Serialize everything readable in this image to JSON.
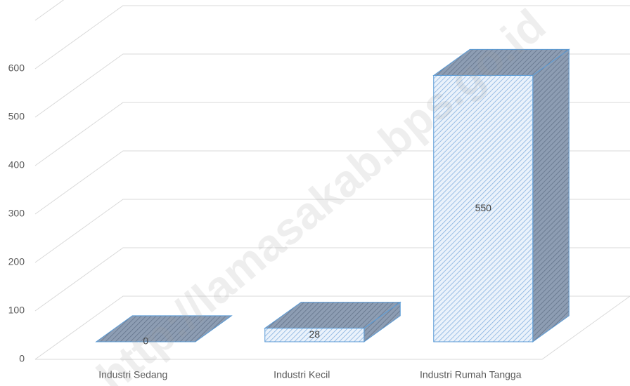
{
  "chart_data": {
    "type": "bar3d",
    "categories": [
      "Industri Sedang",
      "Industri Kecil",
      "Industri Rumah Tangga"
    ],
    "values": [
      0,
      28,
      550
    ],
    "color": "#5b9bd5",
    "ylim": [
      0,
      700
    ],
    "yticks": [
      0,
      100,
      200,
      300,
      400,
      500,
      600
    ],
    "grid": true,
    "watermark": "http://lamasakab.bps.go.id"
  }
}
